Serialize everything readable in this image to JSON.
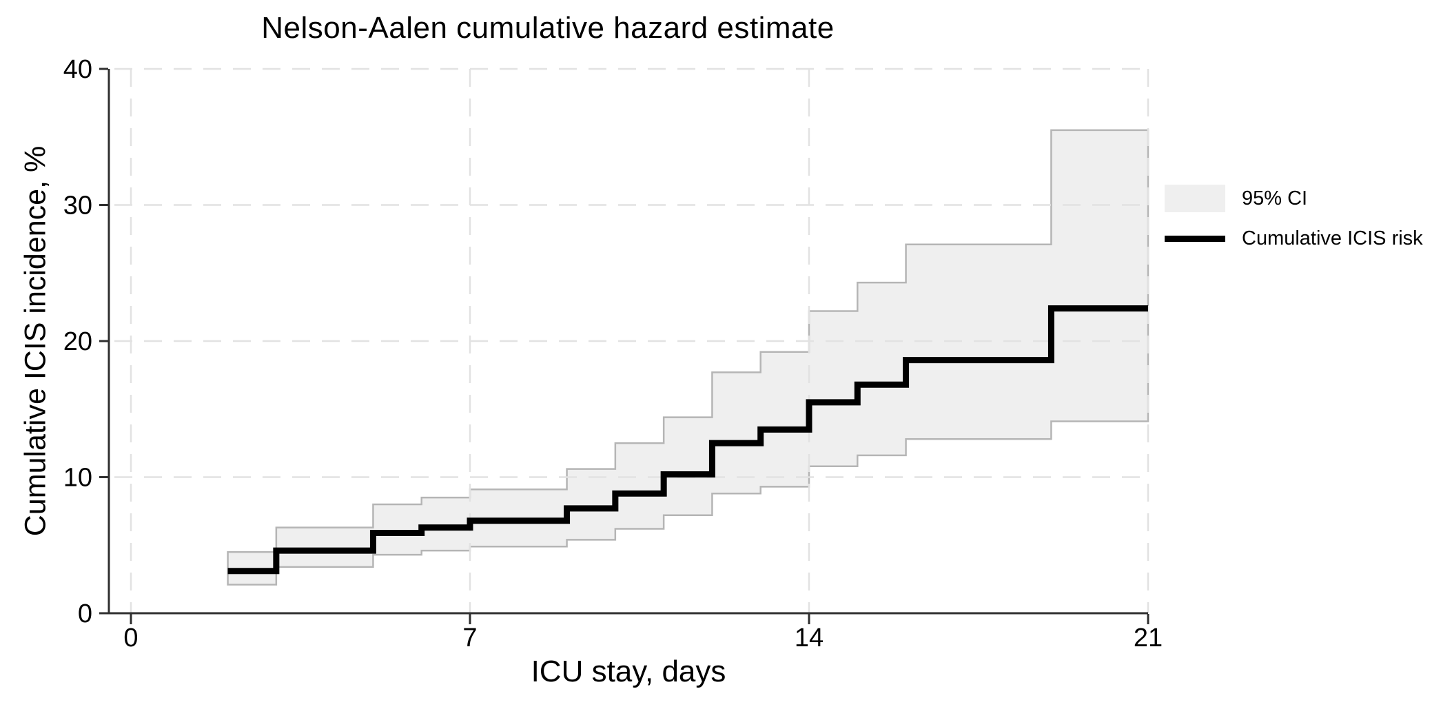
{
  "chart_data": {
    "type": "line",
    "subtype": "step-after cumulative hazard with confidence band",
    "title": "Nelson-Aalen cumulative hazard estimate",
    "xlabel": "ICU stay, days",
    "ylabel": "Cumulative ICIS incidence, %",
    "xlim": [
      0,
      21
    ],
    "ylim": [
      0,
      40
    ],
    "xticks": [
      0,
      7,
      14,
      21
    ],
    "yticks": [
      0,
      10,
      20,
      30,
      40
    ],
    "grid": "dashed light-gray gridlines at all x and y ticks",
    "legend_position": "right of plot, outside",
    "legend": [
      {
        "label": "95% CI",
        "type": "area"
      },
      {
        "label": "Cumulative ICIS risk",
        "type": "line"
      }
    ],
    "series": [
      {
        "name": "Cumulative ICIS risk",
        "style": "step-after",
        "x_start": 2,
        "x_end": 21,
        "points": [
          {
            "day": 2,
            "risk": 3.1,
            "ci_low": 2.1,
            "ci_high": 4.5
          },
          {
            "day": 3,
            "risk": 4.6,
            "ci_low": 3.4,
            "ci_high": 6.3
          },
          {
            "day": 5,
            "risk": 5.9,
            "ci_low": 4.3,
            "ci_high": 8.0
          },
          {
            "day": 6,
            "risk": 6.3,
            "ci_low": 4.6,
            "ci_high": 8.5
          },
          {
            "day": 7,
            "risk": 6.8,
            "ci_low": 4.9,
            "ci_high": 9.1
          },
          {
            "day": 9,
            "risk": 7.7,
            "ci_low": 5.4,
            "ci_high": 10.6
          },
          {
            "day": 10,
            "risk": 8.8,
            "ci_low": 6.2,
            "ci_high": 12.5
          },
          {
            "day": 11,
            "risk": 10.2,
            "ci_low": 7.2,
            "ci_high": 14.4
          },
          {
            "day": 12,
            "risk": 12.5,
            "ci_low": 8.8,
            "ci_high": 17.7
          },
          {
            "day": 13,
            "risk": 13.5,
            "ci_low": 9.3,
            "ci_high": 19.2
          },
          {
            "day": 14,
            "risk": 15.5,
            "ci_low": 10.8,
            "ci_high": 22.2
          },
          {
            "day": 15,
            "risk": 16.8,
            "ci_low": 11.6,
            "ci_high": 24.3
          },
          {
            "day": 16,
            "risk": 18.6,
            "ci_low": 12.8,
            "ci_high": 27.1
          },
          {
            "day": 19,
            "risk": 22.4,
            "ci_low": 14.1,
            "ci_high": 35.5
          }
        ]
      }
    ],
    "colors": {
      "ci_band_fill": "#efefef",
      "ci_band_border": "#b5b5b5",
      "risk_line": "#000000",
      "grid": "#e2e2e2",
      "axis": "#2f2f2f",
      "text": "#000000",
      "background": "#ffffff"
    }
  }
}
